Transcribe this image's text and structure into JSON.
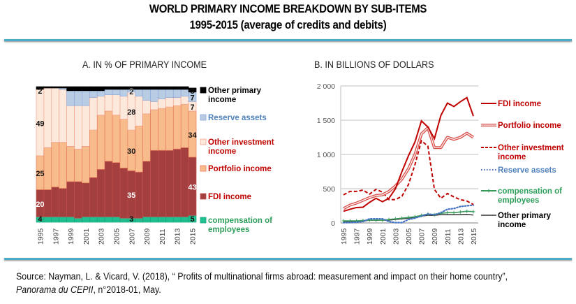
{
  "header": {
    "title": "WORLD PRIMARY INCOME BREAKDOWN BY SUB-ITEMS",
    "subtitle": "1995-2015 (average of credits and debits)"
  },
  "panels": {
    "a_title": "A. IN % OF PRIMARY INCOME",
    "b_title": "B. IN BILLIONS OF DOLLARS"
  },
  "source": {
    "prefix": "Source: Nayman, L. & Vicard, V. (2018), “ Profits of multinational firms abroad: measurement and impact on their home country”, ",
    "journal": "Panorama du CEPII",
    "suffix": ", n°2018-01, May."
  },
  "chart_data": [
    {
      "type": "bar",
      "stacked": true,
      "title": "A. IN % OF PRIMARY INCOME",
      "xlabel": "",
      "ylabel": "",
      "ylim": [
        0,
        100
      ],
      "categories": [
        "1995",
        "1996",
        "1997",
        "1998",
        "1999",
        "2000",
        "2001",
        "2002",
        "2003",
        "2004",
        "2005",
        "2006",
        "2007",
        "2008",
        "2009",
        "2010",
        "2011",
        "2012",
        "2013",
        "2014",
        "2015"
      ],
      "tick_labels": [
        "1995",
        "1997",
        "1999",
        "2001",
        "2003",
        "2005",
        "2007",
        "2009",
        "2011",
        "2013",
        "2015"
      ],
      "legend_position": "right",
      "series": [
        {
          "name": "compensation of employees",
          "color": "#1fbf8f",
          "label_color": "#2e9e5b",
          "values": [
            4,
            4,
            4,
            4,
            4,
            3,
            4,
            4,
            4,
            4,
            4,
            3,
            3,
            3,
            4,
            4,
            4,
            4,
            4,
            4,
            5
          ]
        },
        {
          "name": "FDI income",
          "color": "#a33f3f",
          "label_color": "#c00000",
          "values": [
            20,
            20,
            22,
            21,
            26,
            27,
            25,
            29,
            35,
            41,
            40,
            37,
            35,
            34,
            41,
            49,
            49,
            49,
            50,
            51,
            43
          ]
        },
        {
          "name": "Portfolio income",
          "color": "#f8bc8c",
          "label_color": "#c00000",
          "values": [
            25,
            31,
            33,
            34,
            26,
            24,
            27,
            35,
            40,
            37,
            35,
            36,
            30,
            34,
            35,
            30,
            31,
            32,
            32,
            32,
            34
          ]
        },
        {
          "name": "Other investment income",
          "color": "#fde9dc",
          "label_color": "#c00000",
          "values": [
            49,
            44,
            40,
            39,
            30,
            32,
            30,
            24,
            14,
            12,
            15,
            17,
            28,
            22,
            10,
            6,
            7,
            7,
            6,
            6,
            7
          ]
        },
        {
          "name": "Reserve assets",
          "color": "#b8cce4",
          "label_color": "#4f81bd",
          "values": [
            0,
            0,
            0,
            1,
            11,
            11,
            11,
            5,
            4,
            4,
            4,
            5,
            2,
            5,
            8,
            9,
            7,
            6,
            6,
            5,
            7
          ]
        },
        {
          "name": "Other primary income",
          "color": "#000000",
          "label_color": "#000000",
          "values": [
            2,
            1,
            1,
            1,
            3,
            3,
            3,
            3,
            3,
            2,
            2,
            2,
            2,
            2,
            2,
            2,
            2,
            2,
            2,
            2,
            3
          ]
        }
      ],
      "annotations": [
        {
          "series": "Other primary income",
          "year": "1995",
          "text": "2"
        },
        {
          "series": "Other investment income",
          "year": "1995",
          "text": "49"
        },
        {
          "series": "Portfolio income",
          "year": "1995",
          "text": "25"
        },
        {
          "series": "FDI income",
          "year": "1995",
          "text": "20"
        },
        {
          "series": "compensation of employees",
          "year": "1995",
          "text": "4"
        },
        {
          "series": "Other primary income",
          "year": "2007",
          "text": "2"
        },
        {
          "series": "Reserve assets",
          "year": "2007",
          "text": "2"
        },
        {
          "series": "Other investment income",
          "year": "2007",
          "text": "28"
        },
        {
          "series": "Portfolio income",
          "year": "2007",
          "text": "30"
        },
        {
          "series": "FDI income",
          "year": "2007",
          "text": "35"
        },
        {
          "series": "compensation of employees",
          "year": "2007",
          "text": "3"
        },
        {
          "series": "Other primary income",
          "year": "2015",
          "text": "3"
        },
        {
          "series": "Reserve assets",
          "year": "2015",
          "text": "7"
        },
        {
          "series": "Other investment income",
          "year": "2015",
          "text": "7"
        },
        {
          "series": "Portfolio income",
          "year": "2015",
          "text": "34"
        },
        {
          "series": "FDI income",
          "year": "2015",
          "text": "43"
        },
        {
          "series": "compensation of employees",
          "year": "2015",
          "text": "5"
        }
      ],
      "legend": [
        {
          "name": "Other primary income",
          "lines": [
            "Other primary",
            "income"
          ]
        },
        {
          "name": "Reserve assets",
          "lines": [
            "Reserve assets"
          ]
        },
        {
          "name": "Other investment income",
          "lines": [
            "Other investment",
            "income"
          ]
        },
        {
          "name": "Portfolio income",
          "lines": [
            "Portfolio income"
          ]
        },
        {
          "name": "FDI income",
          "lines": [
            "FDI income"
          ]
        },
        {
          "name": "compensation of employees",
          "lines": [
            "compensation of",
            "employees"
          ]
        }
      ]
    },
    {
      "type": "line",
      "title": "B. IN BILLIONS OF DOLLARS",
      "xlabel": "",
      "ylabel": "",
      "ylim": [
        0,
        2000
      ],
      "yticks": [
        0,
        500,
        1000,
        1500,
        2000
      ],
      "ytick_labels": [
        "0",
        "500",
        "1 000",
        "1 500",
        "2 000"
      ],
      "grid": true,
      "x": [
        "1995",
        "1996",
        "1997",
        "1998",
        "1999",
        "2000",
        "2001",
        "2002",
        "2003",
        "2004",
        "2005",
        "2006",
        "2007",
        "2008",
        "2009",
        "2010",
        "2011",
        "2012",
        "2013",
        "2014",
        "2015"
      ],
      "tick_labels": [
        "1995",
        "1997",
        "1999",
        "2001",
        "2003",
        "2005",
        "2007",
        "2009",
        "2011",
        "2013",
        "2015"
      ],
      "legend_position": "right",
      "series": [
        {
          "name": "FDI income",
          "style": "solid",
          "color": "#c00000",
          "label_color": "#c00000",
          "legend_lines": [
            "FDI income"
          ],
          "values": [
            170,
            200,
            225,
            230,
            300,
            360,
            310,
            360,
            500,
            750,
            980,
            1180,
            1490,
            1400,
            1230,
            1570,
            1750,
            1700,
            1770,
            1830,
            1560
          ]
        },
        {
          "name": "Portfolio income",
          "style": "double",
          "color": "#d9534f",
          "label_color": "#c00000",
          "legend_lines": [
            "Portfolio income"
          ],
          "values": [
            210,
            260,
            290,
            330,
            370,
            400,
            410,
            460,
            540,
            640,
            790,
            1000,
            1300,
            1390,
            1100,
            1100,
            1250,
            1220,
            1250,
            1310,
            1250
          ]
        },
        {
          "name": "Other investment income",
          "style": "dashed",
          "color": "#c00000",
          "label_color": "#c00000",
          "legend_lines": [
            "Other investment",
            "income"
          ],
          "values": [
            410,
            460,
            460,
            480,
            420,
            490,
            450,
            340,
            340,
            390,
            560,
            850,
            1200,
            1120,
            490,
            360,
            430,
            380,
            340,
            320,
            270
          ]
        },
        {
          "name": "Reserve assets",
          "style": "dotted",
          "color": "#4472c4",
          "label_color": "#4f81bd",
          "legend_lines": [
            "Reserve assets"
          ],
          "values": [
            5,
            5,
            10,
            20,
            60,
            60,
            60,
            20,
            5,
            5,
            50,
            70,
            100,
            130,
            120,
            150,
            200,
            210,
            240,
            250,
            260
          ]
        },
        {
          "name": "compensation of employees",
          "style": "plus",
          "color": "#3a9a5b",
          "label_color": "#2e9e5b",
          "legend_lines": [
            "compensation of",
            "employees"
          ],
          "values": [
            30,
            30,
            30,
            35,
            40,
            40,
            40,
            50,
            60,
            70,
            80,
            90,
            110,
            130,
            120,
            140,
            150,
            150,
            160,
            170,
            165
          ]
        },
        {
          "name": "Other primary income",
          "style": "solid-thin",
          "color": "#333333",
          "label_color": "#000000",
          "legend_lines": [
            "Other primary",
            "income"
          ],
          "values": [
            20,
            20,
            20,
            25,
            40,
            40,
            40,
            40,
            50,
            60,
            70,
            80,
            100,
            110,
            110,
            120,
            120,
            120,
            120,
            125,
            115
          ]
        }
      ]
    }
  ]
}
